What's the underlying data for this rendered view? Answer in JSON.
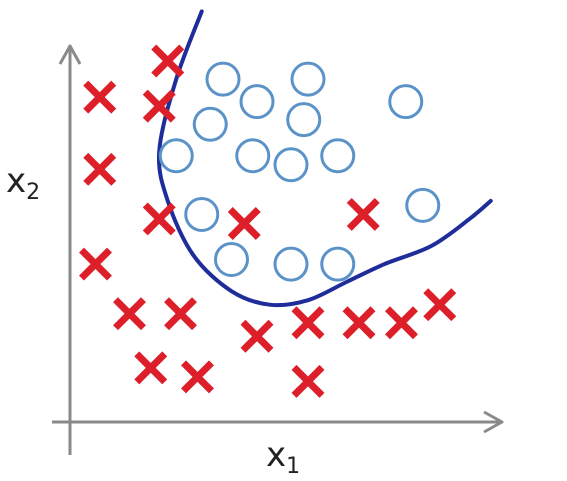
{
  "chart_data": {
    "type": "scatter",
    "title": "",
    "xlabel": "x",
    "xlabel_subscript": "1",
    "ylabel": "x",
    "ylabel_subscript": "2",
    "grid": false,
    "legend": "none",
    "xlim": [
      0,
      10
    ],
    "ylim": [
      0,
      8.2
    ],
    "series": [
      {
        "marker": "x",
        "color": "#dd1f2a",
        "points": [
          [
            2.3,
            8.0
          ],
          [
            0.7,
            7.2
          ],
          [
            2.1,
            7.0
          ],
          [
            0.7,
            5.6
          ],
          [
            2.1,
            4.5
          ],
          [
            4.1,
            4.4
          ],
          [
            6.9,
            4.6
          ],
          [
            0.6,
            3.5
          ],
          [
            1.4,
            2.4
          ],
          [
            2.6,
            2.4
          ],
          [
            4.4,
            1.9
          ],
          [
            5.6,
            2.2
          ],
          [
            6.8,
            2.2
          ],
          [
            7.8,
            2.2
          ],
          [
            8.7,
            2.6
          ],
          [
            1.9,
            1.2
          ],
          [
            3.0,
            1.0
          ],
          [
            5.6,
            0.9
          ]
        ]
      },
      {
        "marker": "o",
        "color": "#5b93c9",
        "points": [
          [
            3.6,
            7.6
          ],
          [
            5.6,
            7.6
          ],
          [
            4.4,
            7.1
          ],
          [
            3.3,
            6.6
          ],
          [
            5.5,
            6.7
          ],
          [
            7.9,
            7.1
          ],
          [
            2.5,
            5.9
          ],
          [
            4.3,
            5.9
          ],
          [
            5.2,
            5.7
          ],
          [
            6.3,
            5.9
          ],
          [
            3.1,
            4.6
          ],
          [
            8.3,
            4.8
          ],
          [
            3.8,
            3.6
          ],
          [
            5.2,
            3.5
          ],
          [
            6.3,
            3.5
          ]
        ]
      }
    ],
    "boundary": {
      "color": "#1f2d9a",
      "points": [
        [
          3.1,
          9.1
        ],
        [
          2.5,
          7.6
        ],
        [
          2.1,
          6.0
        ],
        [
          2.3,
          4.9
        ],
        [
          2.9,
          3.7
        ],
        [
          3.8,
          2.9
        ],
        [
          4.7,
          2.6
        ],
        [
          5.6,
          2.7
        ],
        [
          6.5,
          3.1
        ],
        [
          7.4,
          3.5
        ],
        [
          8.5,
          3.9
        ],
        [
          9.4,
          4.5
        ],
        [
          9.9,
          4.9
        ]
      ]
    },
    "axis_color": "#8a8a8a"
  }
}
